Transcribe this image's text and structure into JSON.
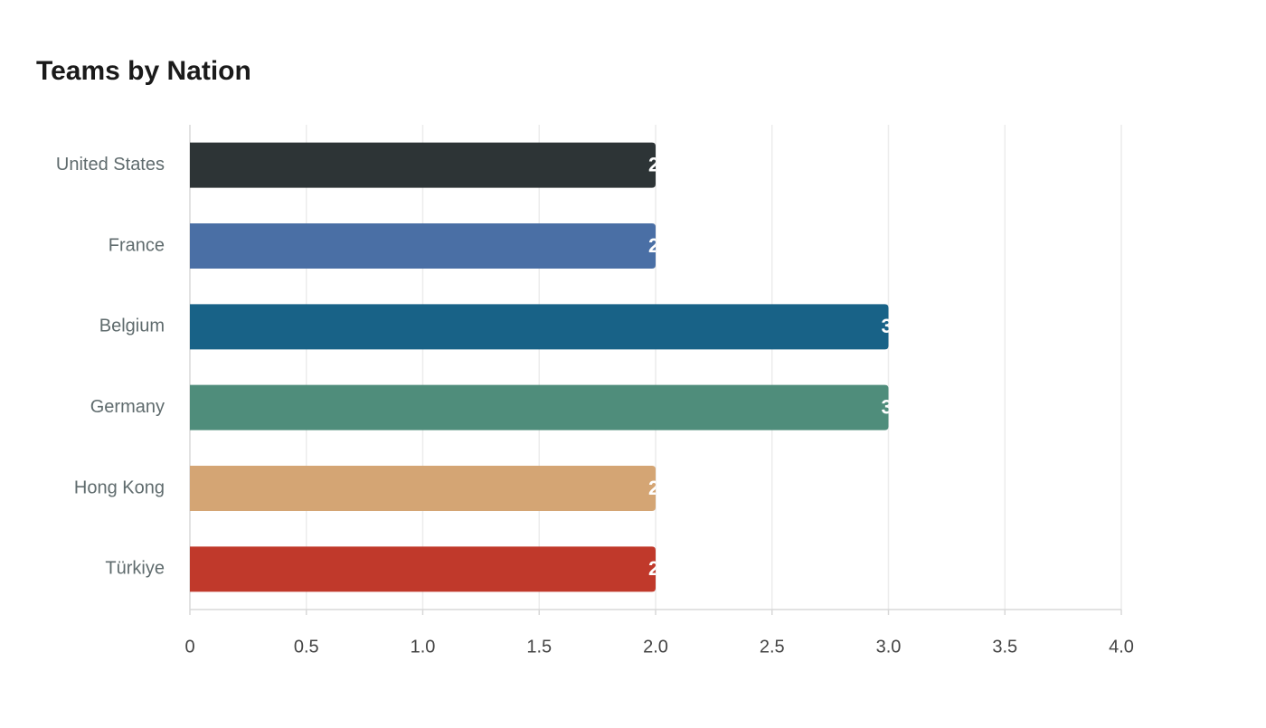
{
  "chart_data": {
    "type": "bar",
    "orientation": "horizontal",
    "title": "Teams by Nation",
    "categories": [
      "United States",
      "France",
      "Belgium",
      "Germany",
      "Hong Kong",
      "Türkiye"
    ],
    "values": [
      2,
      2,
      3,
      3,
      2,
      2
    ],
    "colors": [
      "#2d3436",
      "#4a6fa5",
      "#186287",
      "#4f8d7b",
      "#d4a574",
      "#c0392b"
    ],
    "xlim": [
      0,
      4
    ],
    "xticks": [
      0,
      0.5,
      {
        "value": 1,
        "label": "1.0"
      },
      1.5,
      {
        "value": 2,
        "label": "2.0"
      },
      2.5,
      {
        "value": 3,
        "label": "3.0"
      },
      3.5,
      {
        "value": 4,
        "label": "4.0"
      }
    ],
    "grid": true
  }
}
